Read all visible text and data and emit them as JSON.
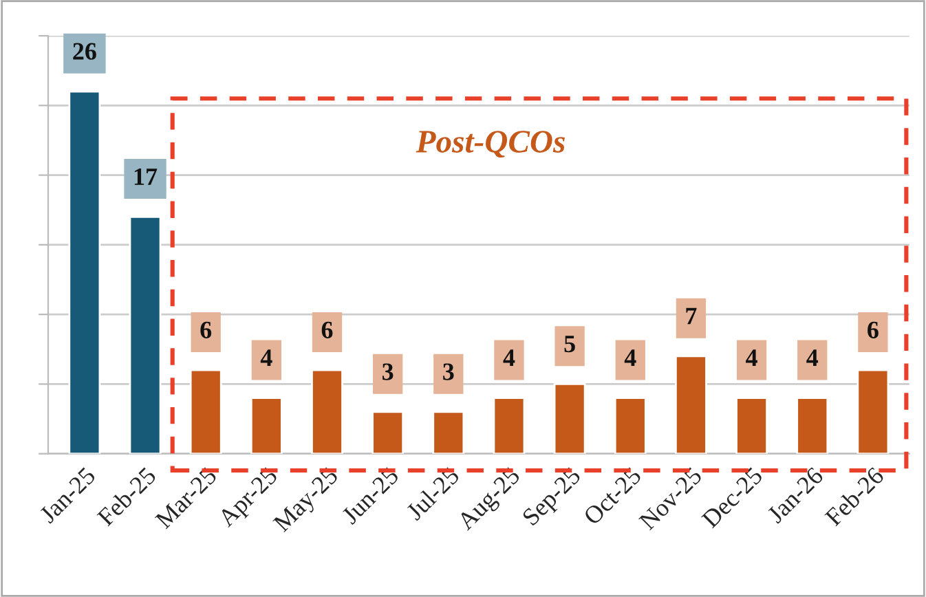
{
  "chart_data": {
    "type": "bar",
    "categories": [
      "Jan-25",
      "Feb-25",
      "Mar-25",
      "Apr-25",
      "May-25",
      "Jun-25",
      "Jul-25",
      "Aug-25",
      "Sep-25",
      "Oct-25",
      "Nov-25",
      "Dec-25",
      "Jan-26",
      "Feb-26"
    ],
    "values": [
      26,
      17,
      6,
      4,
      6,
      3,
      3,
      4,
      5,
      4,
      7,
      4,
      4,
      6
    ],
    "colors": [
      "#175a78",
      "#175a78",
      "#c5591a",
      "#c5591a",
      "#c5591a",
      "#c5591a",
      "#c5591a",
      "#c5591a",
      "#c5591a",
      "#c5591a",
      "#c5591a",
      "#c5591a",
      "#c5591a",
      "#c5591a"
    ],
    "data_labels": true,
    "ylim": [
      0,
      30
    ],
    "yticks": [
      {
        "value": 0,
        "label": null
      },
      {
        "value": 5,
        "label": null
      },
      {
        "value": 10,
        "label": null
      },
      {
        "value": 15,
        "label": null
      },
      {
        "value": 20,
        "label": null
      },
      {
        "value": 25,
        "label": null
      },
      {
        "value": 30,
        "label": null
      }
    ],
    "grid": "y",
    "annotations": [
      "Post-QCOs"
    ]
  }
}
